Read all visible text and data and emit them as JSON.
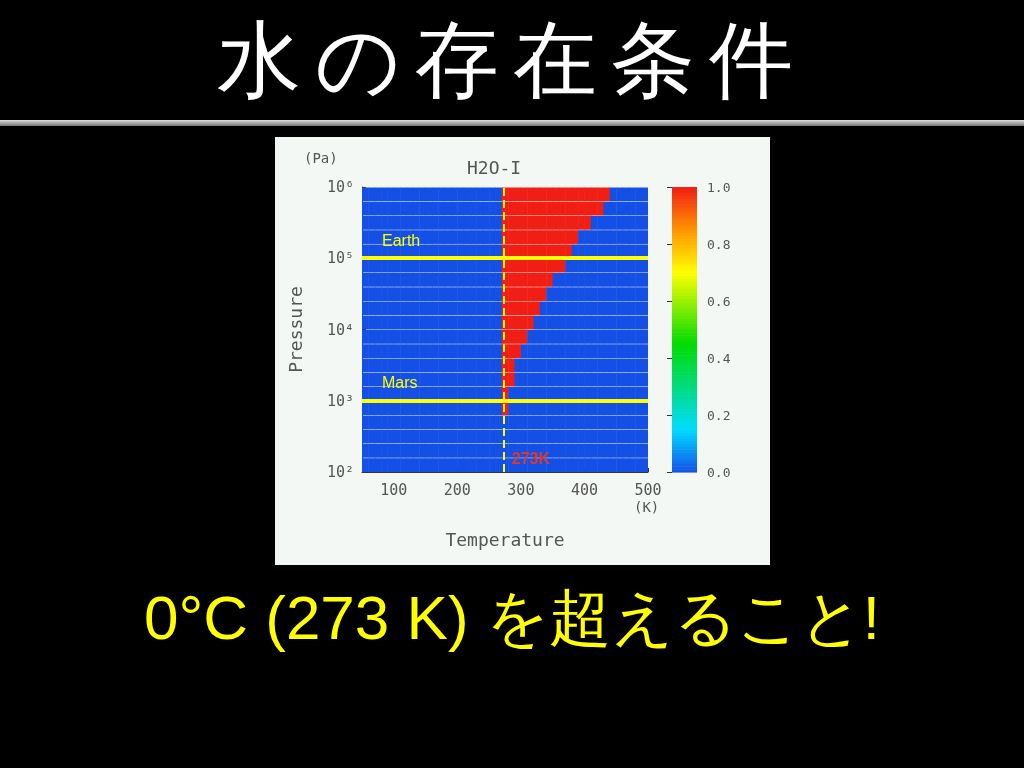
{
  "chart_data": {
    "type": "heatmap",
    "title": "水の存在条件",
    "subtitle": "H2O-I",
    "xlabel": "Temperature",
    "ylabel": "Pressure",
    "annotations": [
      "(Pa)",
      "(K)",
      "0°C (273 K) を超えること!"
    ],
    "x": [
      55,
      65,
      75,
      85,
      95,
      105,
      115,
      125,
      135,
      145,
      155,
      165,
      175,
      185,
      195,
      205,
      215,
      225,
      235,
      245,
      255,
      265,
      275,
      285,
      295,
      305,
      315,
      325,
      335,
      345,
      355,
      365,
      375,
      385,
      395,
      405,
      415,
      425,
      435,
      445,
      455,
      465,
      475,
      485,
      495
    ],
    "y": [
      794000,
      501000,
      316000,
      200000,
      126000,
      79400,
      50100,
      31600,
      20000,
      12600,
      7940,
      5010,
      3160,
      2000,
      1260,
      794,
      501,
      316,
      200,
      126
    ],
    "cells": [
      [
        0,
        0,
        0,
        0,
        0,
        0,
        0,
        0,
        0,
        0,
        0,
        0,
        0,
        0,
        0,
        0,
        0,
        0,
        0,
        0,
        0,
        0,
        1,
        1,
        1,
        1,
        1,
        1,
        1,
        1,
        1,
        1,
        1,
        1,
        1,
        1,
        1,
        1,
        1,
        0,
        0,
        0,
        0,
        0,
        0
      ],
      [
        0,
        0,
        0,
        0,
        0,
        0,
        0,
        0,
        0,
        0,
        0,
        0,
        0,
        0,
        0,
        0,
        0,
        0,
        0,
        0,
        0,
        0,
        1,
        1,
        1,
        1,
        1,
        1,
        1,
        1,
        1,
        1,
        1,
        1,
        1,
        1,
        1,
        1,
        0,
        0,
        0,
        0,
        0,
        0,
        0
      ],
      [
        0,
        0,
        0,
        0,
        0,
        0,
        0,
        0,
        0,
        0,
        0,
        0,
        0,
        0,
        0,
        0,
        0,
        0,
        0,
        0,
        0,
        0,
        1,
        1,
        1,
        1,
        1,
        1,
        1,
        1,
        1,
        1,
        1,
        1,
        1,
        1,
        0,
        0,
        0,
        0,
        0,
        0,
        0,
        0,
        0
      ],
      [
        0,
        0,
        0,
        0,
        0,
        0,
        0,
        0,
        0,
        0,
        0,
        0,
        0,
        0,
        0,
        0,
        0,
        0,
        0,
        0,
        0,
        0,
        1,
        1,
        1,
        1,
        1,
        1,
        1,
        1,
        1,
        1,
        1,
        1,
        0,
        0,
        0,
        0,
        0,
        0,
        0,
        0,
        0,
        0,
        0
      ],
      [
        0,
        0,
        0,
        0,
        0,
        0,
        0,
        0,
        0,
        0,
        0,
        0,
        0,
        0,
        0,
        0,
        0,
        0,
        0,
        0,
        0,
        0,
        1,
        1,
        1,
        1,
        1,
        1,
        1,
        1,
        1,
        1,
        1,
        0,
        0,
        0,
        0,
        0,
        0,
        0,
        0,
        0,
        0,
        0,
        0
      ],
      [
        0,
        0,
        0,
        0,
        0,
        0,
        0,
        0,
        0,
        0,
        0,
        0,
        0,
        0,
        0,
        0,
        0,
        0,
        0,
        0,
        0,
        0,
        1,
        1,
        1,
        1,
        1,
        1,
        1,
        1,
        1,
        1,
        0,
        0,
        0,
        0,
        0,
        0,
        0,
        0,
        0,
        0,
        0,
        0,
        0
      ],
      [
        0,
        0,
        0,
        0,
        0,
        0,
        0,
        0,
        0,
        0,
        0,
        0,
        0,
        0,
        0,
        0,
        0,
        0,
        0,
        0,
        0,
        0,
        1,
        1,
        1,
        1,
        1,
        1,
        1,
        1,
        0,
        0,
        0,
        0,
        0,
        0,
        0,
        0,
        0,
        0,
        0,
        0,
        0,
        0,
        0
      ],
      [
        0,
        0,
        0,
        0,
        0,
        0,
        0,
        0,
        0,
        0,
        0,
        0,
        0,
        0,
        0,
        0,
        0,
        0,
        0,
        0,
        0,
        0,
        1,
        1,
        1,
        1,
        1,
        1,
        1,
        0,
        0,
        0,
        0,
        0,
        0,
        0,
        0,
        0,
        0,
        0,
        0,
        0,
        0,
        0,
        0
      ],
      [
        0,
        0,
        0,
        0,
        0,
        0,
        0,
        0,
        0,
        0,
        0,
        0,
        0,
        0,
        0,
        0,
        0,
        0,
        0,
        0,
        0,
        0,
        1,
        1,
        1,
        1,
        1,
        1,
        0,
        0,
        0,
        0,
        0,
        0,
        0,
        0,
        0,
        0,
        0,
        0,
        0,
        0,
        0,
        0,
        0
      ],
      [
        0,
        0,
        0,
        0,
        0,
        0,
        0,
        0,
        0,
        0,
        0,
        0,
        0,
        0,
        0,
        0,
        0,
        0,
        0,
        0,
        0,
        0,
        1,
        1,
        1,
        1,
        1,
        0,
        0,
        0,
        0,
        0,
        0,
        0,
        0,
        0,
        0,
        0,
        0,
        0,
        0,
        0,
        0,
        0,
        0
      ],
      [
        0,
        0,
        0,
        0,
        0,
        0,
        0,
        0,
        0,
        0,
        0,
        0,
        0,
        0,
        0,
        0,
        0,
        0,
        0,
        0,
        0,
        0,
        1,
        1,
        1,
        1,
        0,
        0,
        0,
        0,
        0,
        0,
        0,
        0,
        0,
        0,
        0,
        0,
        0,
        0,
        0,
        0,
        0,
        0,
        0
      ],
      [
        0,
        0,
        0,
        0,
        0,
        0,
        0,
        0,
        0,
        0,
        0,
        0,
        0,
        0,
        0,
        0,
        0,
        0,
        0,
        0,
        0,
        0,
        1,
        1,
        1,
        0,
        0,
        0,
        0,
        0,
        0,
        0,
        0,
        0,
        0,
        0,
        0,
        0,
        0,
        0,
        0,
        0,
        0,
        0,
        0
      ],
      [
        0,
        0,
        0,
        0,
        0,
        0,
        0,
        0,
        0,
        0,
        0,
        0,
        0,
        0,
        0,
        0,
        0,
        0,
        0,
        0,
        0,
        0,
        1,
        1,
        0,
        0,
        0,
        0,
        0,
        0,
        0,
        0,
        0,
        0,
        0,
        0,
        0,
        0,
        0,
        0,
        0,
        0,
        0,
        0,
        0
      ],
      [
        0,
        0,
        0,
        0,
        0,
        0,
        0,
        0,
        0,
        0,
        0,
        0,
        0,
        0,
        0,
        0,
        0,
        0,
        0,
        0,
        0,
        0,
        1,
        1,
        0,
        0,
        0,
        0,
        0,
        0,
        0,
        0,
        0,
        0,
        0,
        0,
        0,
        0,
        0,
        0,
        0,
        0,
        0,
        0,
        0
      ],
      [
        0,
        0,
        0,
        0,
        0,
        0,
        0,
        0,
        0,
        0,
        0,
        0,
        0,
        0,
        0,
        0,
        0,
        0,
        0,
        0,
        0,
        0,
        1,
        0,
        0,
        0,
        0,
        0,
        0,
        0,
        0,
        0,
        0,
        0,
        0,
        0,
        0,
        0,
        0,
        0,
        0,
        0,
        0,
        0,
        0
      ],
      [
        0,
        0,
        0,
        0,
        0,
        0,
        0,
        0,
        0,
        0,
        0,
        0,
        0,
        0,
        0,
        0,
        0,
        0,
        0,
        0,
        0,
        0,
        1,
        0,
        0,
        0,
        0,
        0,
        0,
        0,
        0,
        0,
        0,
        0,
        0,
        0,
        0,
        0,
        0,
        0,
        0,
        0,
        0,
        0,
        0
      ],
      [
        0,
        0,
        0,
        0,
        0,
        0,
        0,
        0,
        0,
        0,
        0,
        0,
        0,
        0,
        0,
        0,
        0,
        0,
        0,
        0,
        0,
        0,
        0,
        0,
        0,
        0,
        0,
        0,
        0,
        0,
        0,
        0,
        0,
        0,
        0,
        0,
        0,
        0,
        0,
        0,
        0,
        0,
        0,
        0,
        0
      ],
      [
        0,
        0,
        0,
        0,
        0,
        0,
        0,
        0,
        0,
        0,
        0,
        0,
        0,
        0,
        0,
        0,
        0,
        0,
        0,
        0,
        0,
        0,
        0,
        0,
        0,
        0,
        0,
        0,
        0,
        0,
        0,
        0,
        0,
        0,
        0,
        0,
        0,
        0,
        0,
        0,
        0,
        0,
        0,
        0,
        0
      ],
      [
        0,
        0,
        0,
        0,
        0,
        0,
        0,
        0,
        0,
        0,
        0,
        0,
        0,
        0,
        0,
        0,
        0,
        0,
        0,
        0,
        0,
        0,
        0,
        0,
        0,
        0,
        0,
        0,
        0,
        0,
        0,
        0,
        0,
        0,
        0,
        0,
        0,
        0,
        0,
        0,
        0,
        0,
        0,
        0,
        0
      ],
      [
        0,
        0,
        0,
        0,
        0,
        0,
        0,
        0,
        0,
        0,
        0,
        0,
        0,
        0,
        0,
        0,
        0,
        0,
        0,
        0,
        0,
        0,
        0,
        0,
        0,
        0,
        0,
        0,
        0,
        0,
        0,
        0,
        0,
        0,
        0,
        0,
        0,
        0,
        0,
        0,
        0,
        0,
        0,
        0,
        0
      ]
    ],
    "xlim": [
      50,
      500
    ],
    "xticks": [
      100,
      200,
      300,
      400,
      500
    ],
    "ylim": [
      100,
      1000000
    ],
    "log": "y",
    "yticks": [
      {
        "value": 100,
        "label": "10²"
      },
      {
        "value": 1000,
        "label": "10³"
      },
      {
        "value": 10000,
        "label": "10⁴"
      },
      {
        "value": 100000,
        "label": "10⁵"
      },
      {
        "value": 1000000,
        "label": "10⁶"
      }
    ],
    "clim": [
      0,
      1
    ],
    "cticks": [
      {
        "value": 0,
        "label": "0.0"
      },
      {
        "value": 0.2,
        "label": "0.2"
      },
      {
        "value": 0.4,
        "label": "0.4"
      },
      {
        "value": 0.6,
        "label": "0.6"
      },
      {
        "value": 0.8,
        "label": "0.8"
      },
      {
        "value": 1,
        "label": "1.0"
      }
    ],
    "ref_lines": [
      {
        "axis": "y",
        "value": 100000,
        "label": "Earth",
        "color": "#ffff00",
        "line_style": "solid"
      },
      {
        "axis": "y",
        "value": 1000,
        "label": "Mars",
        "color": "#ffff00",
        "line_style": "solid"
      },
      {
        "axis": "x",
        "value": 273,
        "label": "273K",
        "color": "#ffff00",
        "line_style": "dashed"
      }
    ],
    "grid": false
  }
}
